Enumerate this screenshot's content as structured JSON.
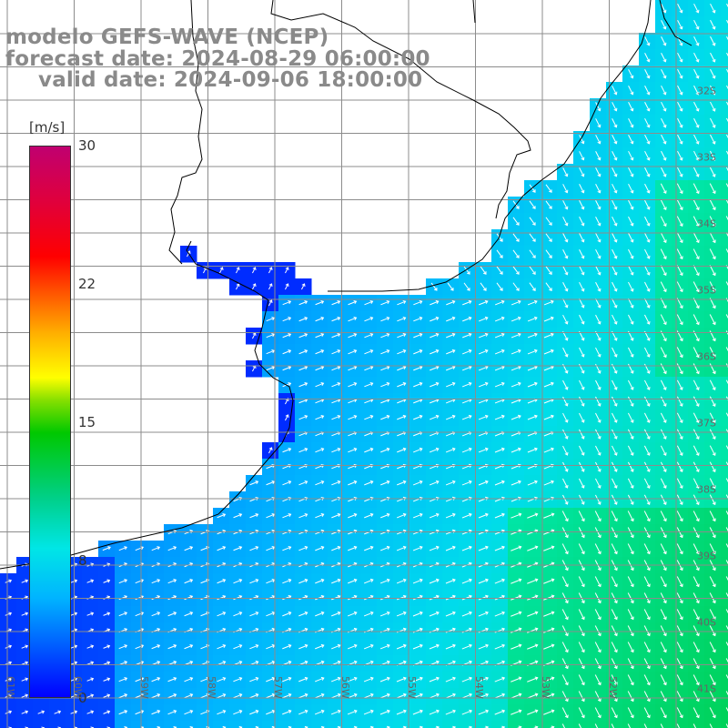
{
  "title": {
    "line1": "modelo GEFS-WAVE (NCEP)",
    "line2": "forecast date: 2024-08-29 06:00:00",
    "line3": "valid date: 2024-09-06 18:00:00"
  },
  "colorbar": {
    "unit": "[m/s]",
    "min": 0,
    "max": 30,
    "ticks": [
      "30",
      "22",
      "15",
      "8",
      "0"
    ]
  },
  "axes": {
    "lat_labels": [
      "32S",
      "33S",
      "34S",
      "35S",
      "36S",
      "37S",
      "38S",
      "39S",
      "40S",
      "41S"
    ],
    "lon_labels": [
      "61W",
      "60W",
      "59W",
      "58W",
      "57W",
      "56W",
      "55W",
      "54W",
      "53W",
      "52W"
    ]
  },
  "colors": {
    "land": "#ffffff",
    "grid": "#8c8c8c",
    "coast": "#000000",
    "arrows": "#ffffff",
    "title": "#8a8a8a"
  }
}
